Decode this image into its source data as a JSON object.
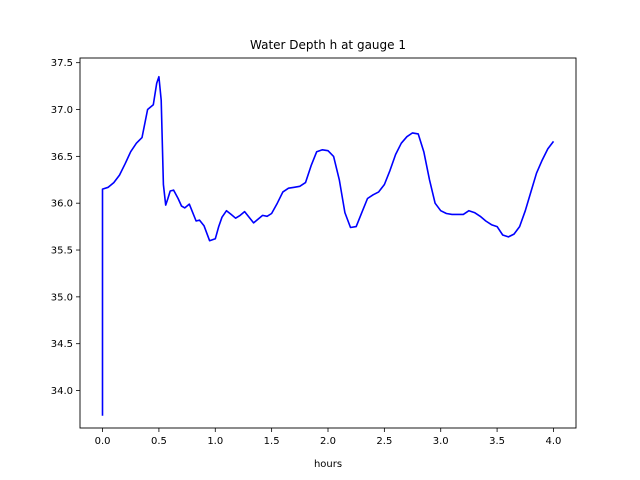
{
  "chart_data": {
    "type": "line",
    "title": "Water Depth h at gauge 1",
    "xlabel": "hours",
    "ylabel": "",
    "xlim": [
      -0.2,
      4.2
    ],
    "ylim": [
      33.6,
      37.55
    ],
    "xticks": [
      0.0,
      0.5,
      1.0,
      1.5,
      2.0,
      2.5,
      3.0,
      3.5,
      4.0
    ],
    "xtick_labels": [
      "0.0",
      "0.5",
      "1.0",
      "1.5",
      "2.0",
      "2.5",
      "3.0",
      "3.5",
      "4.0"
    ],
    "yticks": [
      34.0,
      34.5,
      35.0,
      35.5,
      36.0,
      36.5,
      37.0,
      37.5
    ],
    "ytick_labels": [
      "34.0",
      "34.5",
      "35.0",
      "35.5",
      "36.0",
      "36.5",
      "37.0",
      "37.5"
    ],
    "grid": false,
    "series": [
      {
        "color": "#0000ff",
        "x": [
          0.0,
          0.0,
          0.05,
          0.1,
          0.15,
          0.2,
          0.25,
          0.3,
          0.35,
          0.4,
          0.45,
          0.48,
          0.5,
          0.52,
          0.54,
          0.56,
          0.58,
          0.6,
          0.63,
          0.67,
          0.7,
          0.73,
          0.77,
          0.8,
          0.83,
          0.86,
          0.9,
          0.95,
          1.0,
          1.03,
          1.06,
          1.1,
          1.14,
          1.18,
          1.22,
          1.26,
          1.3,
          1.34,
          1.38,
          1.42,
          1.46,
          1.5,
          1.55,
          1.6,
          1.65,
          1.7,
          1.75,
          1.8,
          1.85,
          1.9,
          1.95,
          2.0,
          2.05,
          2.1,
          2.15,
          2.2,
          2.25,
          2.3,
          2.35,
          2.4,
          2.45,
          2.5,
          2.55,
          2.6,
          2.65,
          2.7,
          2.75,
          2.8,
          2.85,
          2.9,
          2.95,
          3.0,
          3.05,
          3.1,
          3.15,
          3.2,
          3.25,
          3.3,
          3.35,
          3.4,
          3.45,
          3.5,
          3.55,
          3.6,
          3.65,
          3.7,
          3.75,
          3.8,
          3.85,
          3.9,
          3.95,
          4.0
        ],
        "y": [
          33.73,
          36.15,
          36.17,
          36.22,
          36.3,
          36.42,
          36.55,
          36.64,
          36.7,
          37.0,
          37.05,
          37.28,
          37.35,
          37.1,
          36.2,
          35.98,
          36.05,
          36.13,
          36.14,
          36.05,
          35.97,
          35.95,
          35.99,
          35.9,
          35.81,
          35.82,
          35.76,
          35.6,
          35.62,
          35.75,
          35.85,
          35.92,
          35.88,
          35.84,
          35.87,
          35.91,
          35.85,
          35.79,
          35.83,
          35.87,
          35.86,
          35.89,
          36.0,
          36.12,
          36.16,
          36.17,
          36.18,
          36.22,
          36.4,
          36.55,
          36.57,
          36.56,
          36.5,
          36.25,
          35.9,
          35.74,
          35.75,
          35.9,
          36.05,
          36.09,
          36.12,
          36.2,
          36.35,
          36.52,
          36.64,
          36.71,
          36.75,
          36.74,
          36.55,
          36.25,
          36.0,
          35.92,
          35.89,
          35.88,
          35.88,
          35.88,
          35.92,
          35.9,
          35.86,
          35.81,
          35.77,
          35.75,
          35.66,
          35.64,
          35.67,
          35.75,
          35.92,
          36.12,
          36.32,
          36.46,
          36.58,
          36.66
        ]
      }
    ]
  }
}
